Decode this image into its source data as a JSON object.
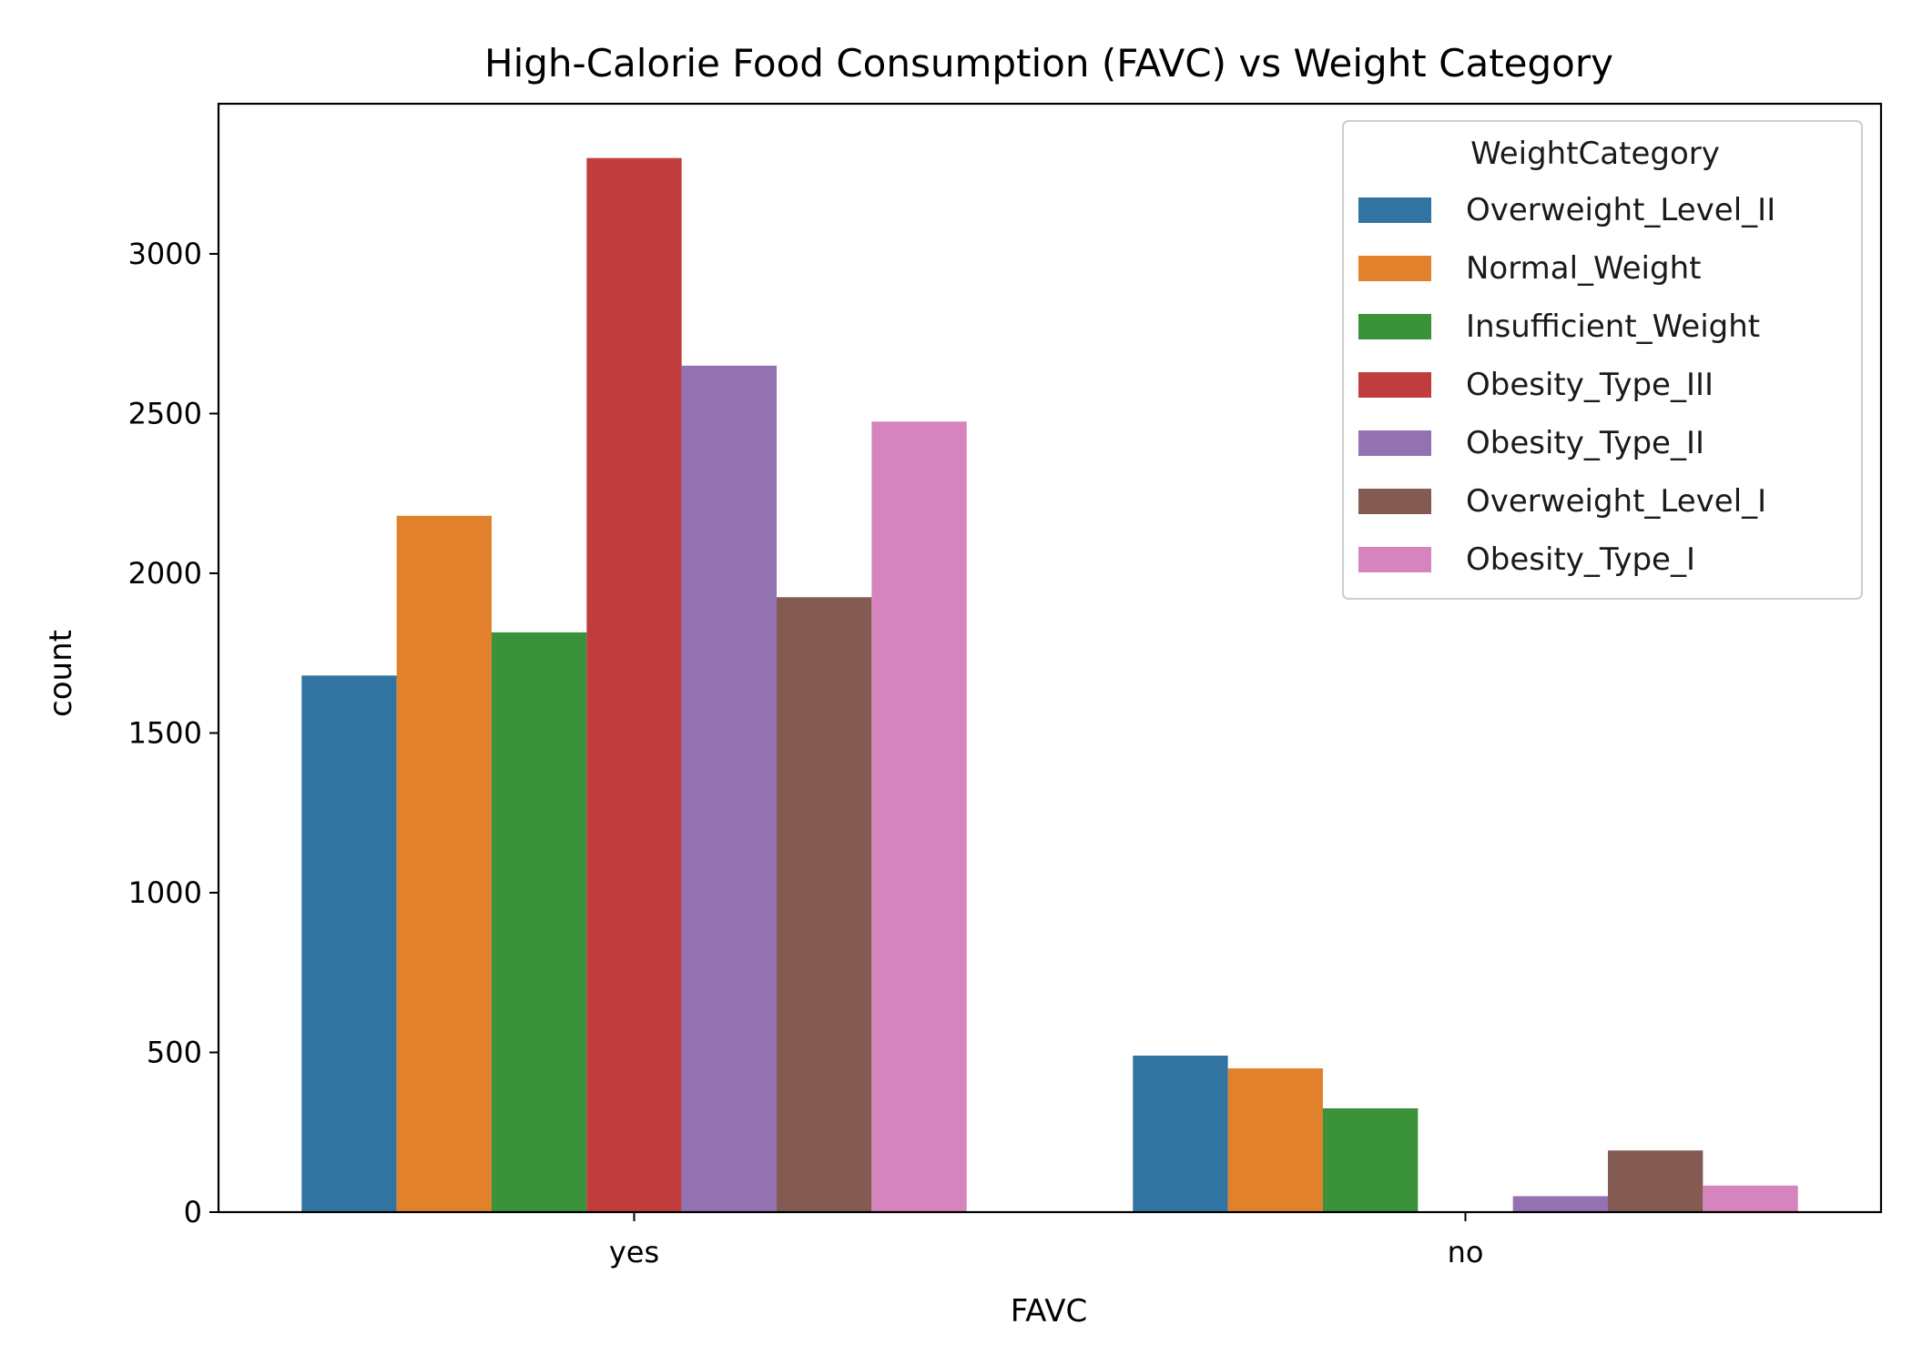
{
  "chart_data": {
    "type": "bar",
    "title": "High-Calorie Food Consumption (FAVC) vs Weight Category",
    "xlabel": "FAVC",
    "ylabel": "count",
    "categories": [
      "yes",
      "no"
    ],
    "ylim": [
      0,
      3470
    ],
    "yticks": [
      0,
      500,
      1000,
      1500,
      2000,
      2500,
      3000
    ],
    "grid": false,
    "legend": {
      "title": "WeightCategory",
      "placement": "upper right"
    },
    "series": [
      {
        "name": "Overweight_Level_II",
        "color": "#3274a1",
        "values": [
          1680,
          490
        ]
      },
      {
        "name": "Normal_Weight",
        "color": "#e1812c",
        "values": [
          2180,
          450
        ]
      },
      {
        "name": "Insufficient_Weight",
        "color": "#3a923a",
        "values": [
          1815,
          325
        ]
      },
      {
        "name": "Obesity_Type_III",
        "color": "#c03d3e",
        "values": [
          3300,
          0
        ]
      },
      {
        "name": "Obesity_Type_II",
        "color": "#9372b2",
        "values": [
          2650,
          50
        ]
      },
      {
        "name": "Overweight_Level_I",
        "color": "#845b53",
        "values": [
          1925,
          193
        ]
      },
      {
        "name": "Obesity_Type_I",
        "color": "#d684bd",
        "values": [
          2475,
          83
        ]
      }
    ]
  }
}
